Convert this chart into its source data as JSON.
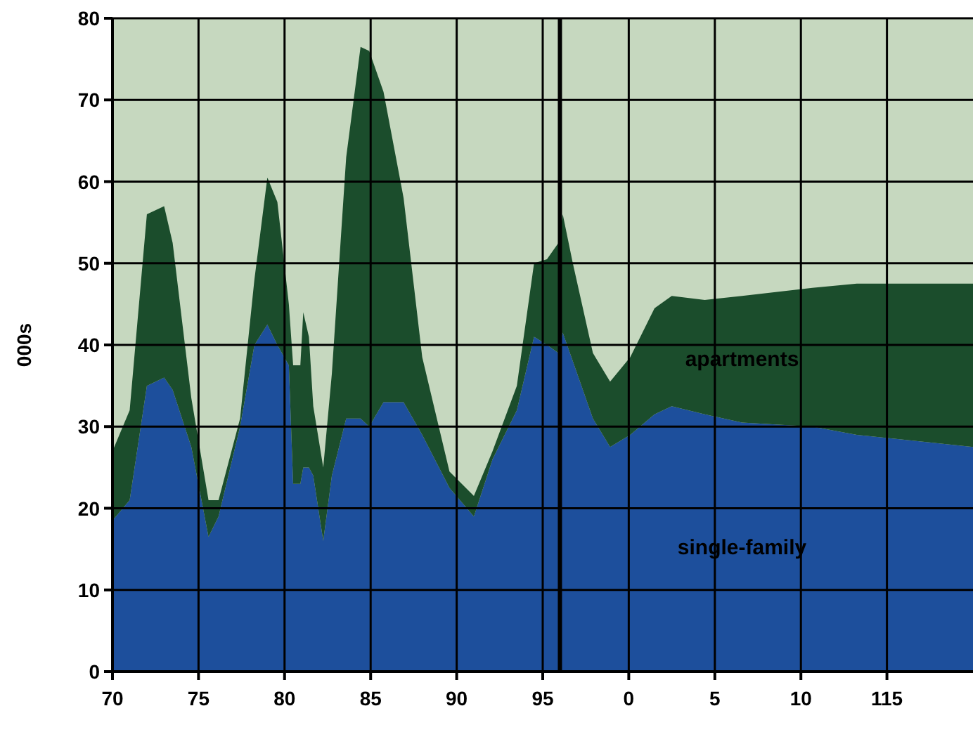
{
  "chart_data": {
    "type": "area",
    "stacked": true,
    "ylabel": "000s",
    "x": [
      "1970-01",
      "1971-01",
      "1972-01",
      "1973-01",
      "1973-07",
      "1974-08",
      "1975-08",
      "1976-03",
      "1977-06",
      "1978-04",
      "1979-01",
      "1979-08",
      "1980-04",
      "1980-07",
      "1980-12",
      "1981-02",
      "1981-06",
      "1981-09",
      "1982-04",
      "1982-10",
      "1983-08",
      "1984-06",
      "1984-12",
      "1985-10",
      "1986-12",
      "1988-01",
      "1989-08",
      "1991-01",
      "1992-02",
      "1993-07",
      "1994-07",
      "1995-04",
      "1995-12",
      "1996-03",
      "1996-10",
      "1997-12",
      "1998-12",
      "2000-02",
      "2001-07",
      "2002-07",
      "2004-06",
      "2006-08",
      "2010-09",
      "2013-04",
      "2020-01"
    ],
    "series": [
      {
        "name": "single-family",
        "color": "#1d4f9c",
        "values": [
          18.5,
          21,
          35,
          36,
          34.5,
          27.5,
          16.5,
          19,
          30,
          40,
          42.5,
          40,
          37.5,
          23,
          23,
          25,
          25,
          24,
          16,
          24,
          31,
          31,
          30,
          33,
          33,
          29,
          22.5,
          19,
          26,
          32,
          41,
          40,
          39,
          41.5,
          38,
          31,
          27.5,
          29,
          31.5,
          32.5,
          31.5,
          30.5,
          30,
          29,
          27.5
        ]
      },
      {
        "name": "apartments",
        "color": "#1b4d2c",
        "values": [
          8.5,
          11,
          21,
          21,
          18,
          6,
          4.5,
          2,
          1,
          8,
          18,
          17.5,
          7.5,
          14.5,
          14.5,
          19,
          16,
          8.5,
          9,
          12.5,
          32,
          45.5,
          46,
          38,
          25,
          9.5,
          2,
          2.5,
          1,
          3,
          9,
          10.5,
          13.5,
          14.5,
          12,
          8,
          8,
          9.5,
          13,
          13.5,
          14,
          15.5,
          17,
          18.5,
          20
        ]
      }
    ],
    "xlim": [
      "1970",
      "2020"
    ],
    "xticks": [
      {
        "value": "1970",
        "label": "70"
      },
      {
        "value": "1975",
        "label": "75"
      },
      {
        "value": "1980",
        "label": "80"
      },
      {
        "value": "1985",
        "label": "85"
      },
      {
        "value": "1990",
        "label": "90"
      },
      {
        "value": "1995",
        "label": "95"
      },
      {
        "value": "2000",
        "label": "0"
      },
      {
        "value": "2005",
        "label": "5"
      },
      {
        "value": "2010",
        "label": "10"
      },
      {
        "value": "2015",
        "label": "115"
      }
    ],
    "ylim": [
      0,
      80
    ],
    "yticks": [
      0,
      10,
      20,
      30,
      40,
      50,
      60,
      70,
      80
    ],
    "grid": true,
    "ref_lines": [
      {
        "axis": "x",
        "value": "1996",
        "color": "#000000"
      }
    ]
  }
}
